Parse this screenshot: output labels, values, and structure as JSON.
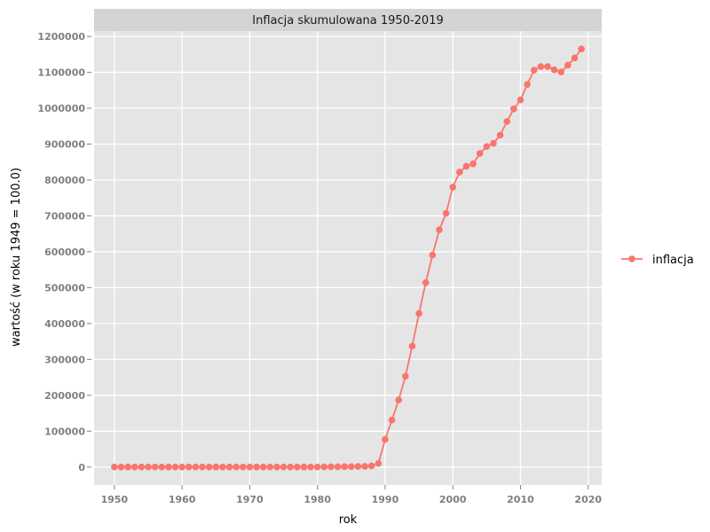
{
  "chart_data": {
    "type": "line",
    "title": "Inflacja skumulowana 1950-2019",
    "xlabel": "rok",
    "ylabel": "wartość (w roku 1949 = 100.0)",
    "xlim": [
      1947,
      2022
    ],
    "ylim": [
      -50000,
      1215000
    ],
    "x_ticks": [
      1950,
      1960,
      1970,
      1980,
      1990,
      2000,
      2010,
      2020
    ],
    "y_ticks": [
      0,
      100000,
      200000,
      300000,
      400000,
      500000,
      600000,
      700000,
      800000,
      900000,
      1000000,
      1100000,
      1200000
    ],
    "grid": true,
    "legend": {
      "position": "right",
      "entries": [
        "inflacja"
      ]
    },
    "colors": {
      "series": "#f8766d",
      "panel": "#e5e5e5",
      "grid": "#ffffff",
      "strip": "#d3d3d3"
    },
    "series": [
      {
        "name": "inflacja",
        "x": [
          1950,
          1951,
          1952,
          1953,
          1954,
          1955,
          1956,
          1957,
          1958,
          1959,
          1960,
          1961,
          1962,
          1963,
          1964,
          1965,
          1966,
          1967,
          1968,
          1969,
          1970,
          1971,
          1972,
          1973,
          1974,
          1975,
          1976,
          1977,
          1978,
          1979,
          1980,
          1981,
          1982,
          1983,
          1984,
          1985,
          1986,
          1987,
          1988,
          1989,
          1990,
          1991,
          1992,
          1993,
          1994,
          1995,
          1996,
          1997,
          1998,
          1999,
          2000,
          2001,
          2002,
          2003,
          2004,
          2005,
          2006,
          2007,
          2008,
          2009,
          2010,
          2011,
          2012,
          2013,
          2014,
          2015,
          2016,
          2017,
          2018,
          2019
        ],
        "y": [
          100,
          110,
          120,
          125,
          130,
          135,
          140,
          145,
          150,
          155,
          160,
          165,
          170,
          175,
          180,
          185,
          190,
          195,
          200,
          205,
          210,
          215,
          220,
          230,
          240,
          250,
          260,
          270,
          290,
          310,
          330,
          400,
          700,
          900,
          1100,
          1400,
          1700,
          2100,
          3300,
          10000,
          77000,
          131000,
          187000,
          253000,
          337000,
          428000,
          514000,
          591000,
          661000,
          707000,
          780000,
          822000,
          838000,
          845000,
          874000,
          893000,
          902000,
          925000,
          963000,
          998000,
          1023000,
          1066000,
          1106000,
          1116000,
          1116000,
          1107000,
          1101000,
          1120000,
          1140000,
          1165000
        ]
      }
    ]
  }
}
